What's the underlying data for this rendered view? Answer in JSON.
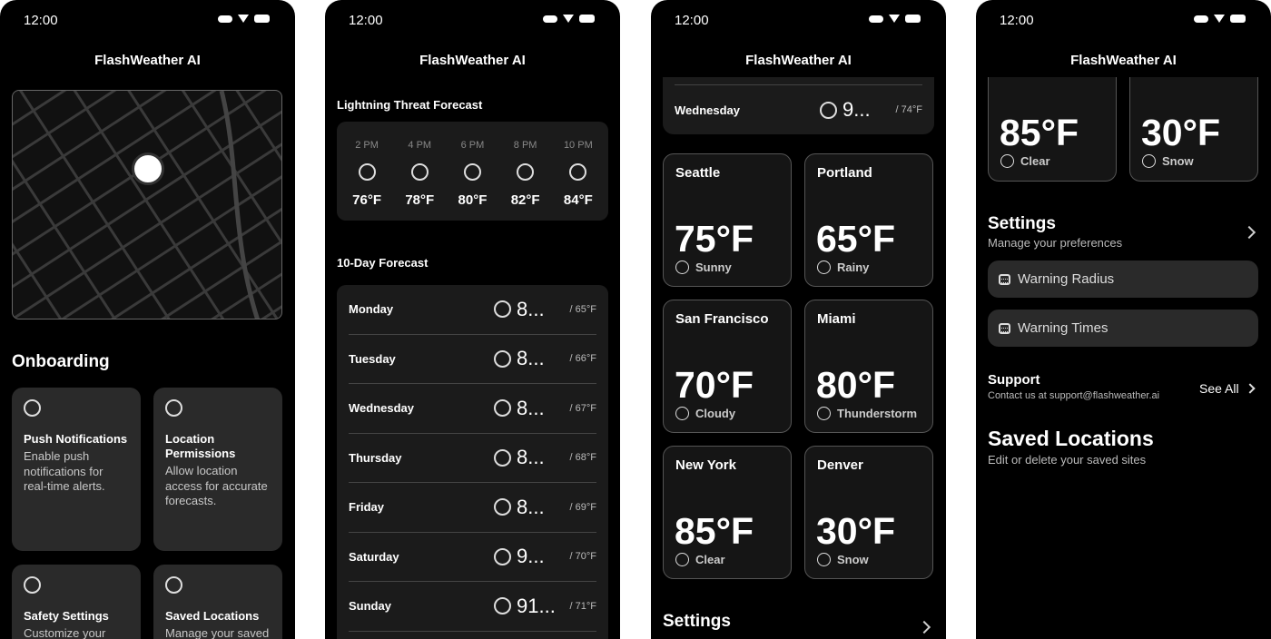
{
  "app": {
    "title": "FlashWeather AI",
    "time": "12:00"
  },
  "screen1": {
    "section": "Onboarding",
    "cards": [
      {
        "title": "Push Notifications",
        "desc": "Enable push notifications for real-time alerts."
      },
      {
        "title": "Location Permissions",
        "desc": "Allow location access for accurate forecasts."
      },
      {
        "title": "Safety Settings",
        "desc": "Customize your"
      },
      {
        "title": "Saved Locations",
        "desc": "Manage your saved"
      }
    ]
  },
  "screen2": {
    "threat_title": "Lightning Threat Forecast",
    "hours": [
      {
        "h": "2 PM",
        "t": "76°F"
      },
      {
        "h": "4 PM",
        "t": "78°F"
      },
      {
        "h": "6 PM",
        "t": "80°F"
      },
      {
        "h": "8 PM",
        "t": "82°F"
      },
      {
        "h": "10 PM",
        "t": "84°F"
      }
    ],
    "ten_day_title": "10-Day Forecast",
    "days": [
      {
        "d": "Monday",
        "hi": "8...",
        "lo": "/  65°F"
      },
      {
        "d": "Tuesday",
        "hi": "8...",
        "lo": "/  66°F"
      },
      {
        "d": "Wednesday",
        "hi": "8...",
        "lo": "/  67°F"
      },
      {
        "d": "Thursday",
        "hi": "8...",
        "lo": "/  68°F"
      },
      {
        "d": "Friday",
        "hi": "8...",
        "lo": "/  69°F"
      },
      {
        "d": "Saturday",
        "hi": "9...",
        "lo": "/  70°F"
      },
      {
        "d": "Sunday",
        "hi": "91...",
        "lo": "/  71°F"
      }
    ]
  },
  "screen3": {
    "top_row": {
      "d": "Wednesday",
      "hi": "9...",
      "lo": "/  74°F"
    },
    "cities": [
      {
        "name": "Seattle",
        "temp": "75°F",
        "cond": "Sunny"
      },
      {
        "name": "Portland",
        "temp": "65°F",
        "cond": "Rainy"
      },
      {
        "name": "San Francisco",
        "temp": "70°F",
        "cond": "Cloudy"
      },
      {
        "name": "Miami",
        "temp": "80°F",
        "cond": "Thunderstorm"
      },
      {
        "name": "New York",
        "temp": "85°F",
        "cond": "Clear"
      },
      {
        "name": "Denver",
        "temp": "30°F",
        "cond": "Snow"
      }
    ],
    "settings": "Settings"
  },
  "screen4": {
    "cities": [
      {
        "temp": "85°F",
        "cond": "Clear"
      },
      {
        "temp": "30°F",
        "cond": "Snow"
      }
    ],
    "settings": {
      "title": "Settings",
      "sub": "Manage your preferences"
    },
    "buttons": [
      "Warning Radius",
      "Warning Times"
    ],
    "support": {
      "title": "Support",
      "sub": "Contact us at support@flashweather.ai",
      "see_all": "See All"
    },
    "saved": {
      "title": "Saved Locations",
      "sub": "Edit or delete your saved sites"
    }
  }
}
